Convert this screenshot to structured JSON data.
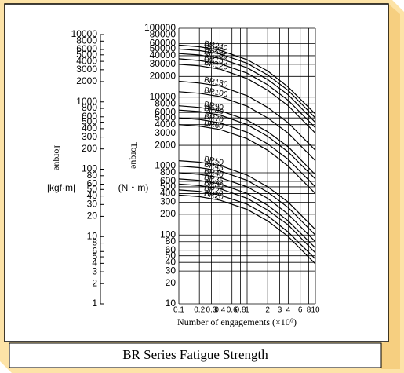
{
  "chart_data": {
    "type": "line",
    "title": "BR Series Fatigue Strength",
    "x_label": "Number of engagements (×10⁶)",
    "y_label": "Torque",
    "y_unit": "(N・m)",
    "y2_label": "Torque",
    "y2_unit": "|kgf·m|",
    "log_x": true,
    "log_y": true,
    "grid": true,
    "line_color": "#000000",
    "xlim": [
      0.1,
      10
    ],
    "xticks": [
      0.1,
      0.2,
      0.3,
      0.4,
      0.6,
      0.8,
      1,
      2,
      3,
      4,
      6,
      8,
      10
    ],
    "ylim": [
      10,
      100000
    ],
    "yticks": [
      10,
      20,
      30,
      40,
      50,
      60,
      80,
      100,
      200,
      300,
      400,
      500,
      600,
      800,
      1000,
      2000,
      3000,
      4000,
      5000,
      6000,
      8000,
      10000,
      20000,
      30000,
      40000,
      50000,
      60000,
      80000,
      100000
    ],
    "y2lim": [
      1,
      10000
    ],
    "y2ticks": [
      1,
      2,
      3,
      4,
      5,
      6,
      8,
      10,
      20,
      30,
      40,
      50,
      60,
      80,
      100,
      200,
      300,
      400,
      500,
      600,
      800,
      1000,
      2000,
      3000,
      4000,
      5000,
      6000,
      8000,
      10000
    ],
    "x": [
      0.1,
      0.2,
      0.4,
      1,
      2,
      4,
      10
    ],
    "series": [
      {
        "name": "BR240",
        "values": [
          57000,
          54000,
          48000,
          35000,
          24000,
          14000,
          5700
        ]
      },
      {
        "name": "BR200",
        "values": [
          50000,
          47500,
          42500,
          31000,
          21000,
          12500,
          5000
        ]
      },
      {
        "name": "BR180",
        "values": [
          43000,
          41000,
          36500,
          26700,
          18000,
          10800,
          4300
        ]
      },
      {
        "name": "BR150",
        "values": [
          36000,
          34000,
          30600,
          22300,
          15100,
          9000,
          3600
        ]
      },
      {
        "name": "BR120",
        "values": [
          30000,
          28500,
          25500,
          18600,
          12600,
          7500,
          3000
        ]
      },
      {
        "name": "BR130",
        "values": [
          17000,
          16000,
          14500,
          10500,
          7100,
          4250,
          1700
        ]
      },
      {
        "name": "BR100",
        "values": [
          12000,
          11400,
          10200,
          7400,
          5000,
          3000,
          1200
        ]
      },
      {
        "name": "BR90",
        "values": [
          7500,
          7100,
          6400,
          4650,
          3150,
          1900,
          750
        ]
      },
      {
        "name": "BR80",
        "values": [
          6500,
          6200,
          5500,
          4000,
          2700,
          1600,
          650
        ]
      },
      {
        "name": "BR70",
        "values": [
          5000,
          4750,
          4250,
          3100,
          2100,
          1250,
          500
        ]
      },
      {
        "name": "BR60",
        "values": [
          4000,
          3800,
          3400,
          2500,
          1700,
          1000,
          400
        ]
      },
      {
        "name": "BR50",
        "values": [
          1200,
          1140,
          1020,
          740,
          500,
          300,
          120
        ]
      },
      {
        "name": "BR45",
        "values": [
          1000,
          950,
          850,
          620,
          420,
          250,
          100
        ]
      },
      {
        "name": "BR40",
        "values": [
          800,
          760,
          680,
          500,
          340,
          200,
          80
        ]
      },
      {
        "name": "BR35",
        "values": [
          650,
          620,
          550,
          400,
          270,
          160,
          65
        ]
      },
      {
        "name": "BR30",
        "values": [
          550,
          520,
          470,
          340,
          230,
          140,
          55
        ]
      },
      {
        "name": "BR25",
        "values": [
          450,
          430,
          380,
          280,
          190,
          110,
          45
        ]
      },
      {
        "name": "BR20",
        "values": [
          380,
          360,
          320,
          235,
          160,
          95,
          38
        ]
      }
    ]
  }
}
